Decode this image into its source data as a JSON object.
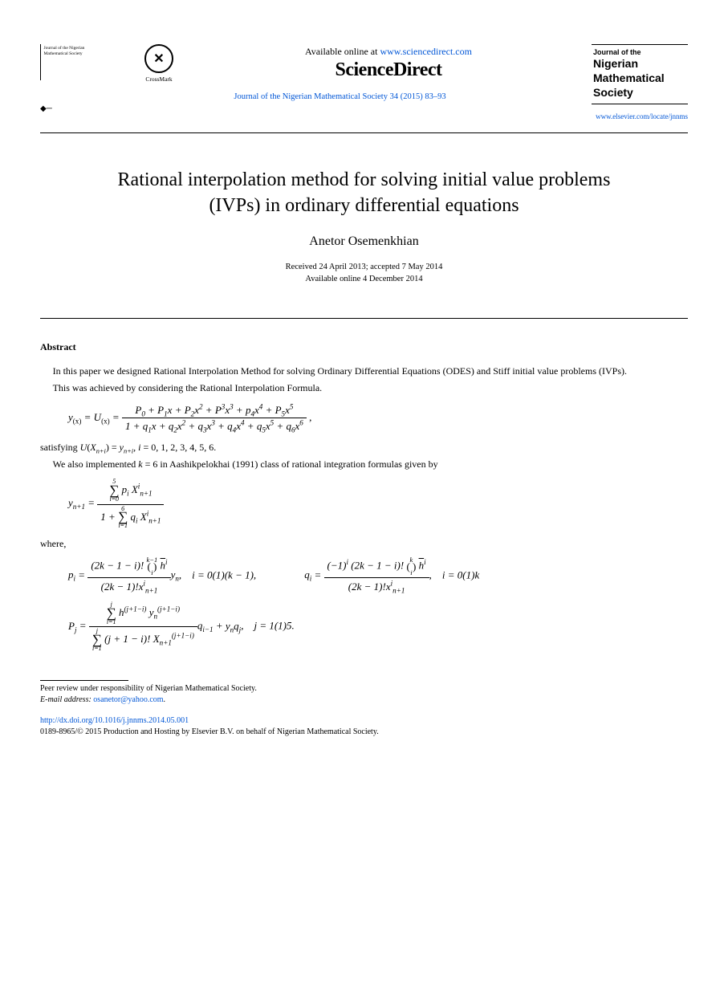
{
  "header": {
    "left_journal_tag": "Journal of the Nigerian Mathematical Society",
    "crossmark_label": "CrossMark",
    "available_prefix": "Available online at ",
    "available_url": "www.sciencedirect.com",
    "sd_logo": "ScienceDirect",
    "journal_ref": "Journal of the Nigerian Mathematical Society 34 (2015) 83–93",
    "journal_box_top": "Journal of the",
    "journal_box_line1": "Nigerian",
    "journal_box_line2": "Mathematical",
    "journal_box_line3": "Society",
    "homepage": "www.elsevier.com/locate/jnnms"
  },
  "title_line1": "Rational interpolation method for solving initial value problems",
  "title_line2": "(IVPs) in ordinary differential equations",
  "author": "Anetor Osemenkhian",
  "dates": {
    "line1": "Received 24 April 2013; accepted 7 May 2014",
    "line2": "Available online 4 December 2014"
  },
  "abstract_label": "Abstract",
  "p1": "In this paper we designed Rational Interpolation Method for solving Ordinary Differential Equations (ODES) and Stiff initial value problems (IVPs).",
  "p2": "This was achieved by considering the Rational Interpolation Formula.",
  "eq1": {
    "lhs": "y(x) = U(x) = ",
    "num": "P₀ + P₁x + P₂x² + P³x³ + p₄x⁴ + P₅x⁵",
    "den": "1 + q₁x + q₂x² + q₃x³ + q₄x⁴ + q₅x⁵ + q₆x⁶",
    "tail": ","
  },
  "p3_prefix": "satisfying ",
  "p3_math": "U(Xn+i) = yn+i, i = 0, 1, 2, 3, 4, 5, 6.",
  "p4": "We also implemented k = 6 in Aashikpelokhai (1991) class of rational integration formulas given by",
  "eq2": {
    "lhs": "yn+1 = ",
    "num_top": "5",
    "num_bot": "i=0",
    "num_expr": " pi Xⁱn+1",
    "den_lead": "1 + ",
    "den_top": "6",
    "den_bot": "i=1",
    "den_expr": " qi Xⁱn+1"
  },
  "where": "where,",
  "eq3a": {
    "lhs": "pi = ",
    "num_a": "(2k − 1 − i)! ",
    "binom_top": "k−1",
    "binom_bot": "i",
    "num_b": " h̄ⁱ",
    "den": "(2k − 1)!xⁱn+1",
    "tail": "yn,    i = 0(1)(k − 1),"
  },
  "eq3b": {
    "lhs": "qi = ",
    "num_a": "(−1)ⁱ (2k − 1 − i)! ",
    "binom_top": "k",
    "binom_bot": "i",
    "num_b": " h̄ⁱ",
    "den": "(2k − 1)!xⁱn+1",
    "tail": ",    i = 0(1)k"
  },
  "eq4": {
    "lhs": "Pj = ",
    "num_top": "j",
    "num_bot": "i=1",
    "num_expr": " h(j+1−i) yn(j+1−i)",
    "den_top": "j",
    "den_bot": "i=1",
    "den_expr": " (j + 1 − i)! Xn+1(j+1−i)",
    "tail": "qi−1 + ynqj,    j = 1(1)5."
  },
  "footnotes": {
    "peer": "Peer review under responsibility of Nigerian Mathematical Society.",
    "email_label": "E-mail address: ",
    "email": "osanetor@yahoo.com",
    "email_tail": "."
  },
  "bottom": {
    "doi": "http://dx.doi.org/10.1016/j.jnnms.2014.05.001",
    "copyright": "0189-8965/© 2015 Production and Hosting by Elsevier B.V. on behalf of Nigerian Mathematical Society."
  },
  "colors": {
    "link": "#0056d6",
    "text": "#000000",
    "bg": "#ffffff"
  },
  "fonts": {
    "title_size": 24,
    "author_size": 16,
    "body_size": 12,
    "small_size": 10
  }
}
